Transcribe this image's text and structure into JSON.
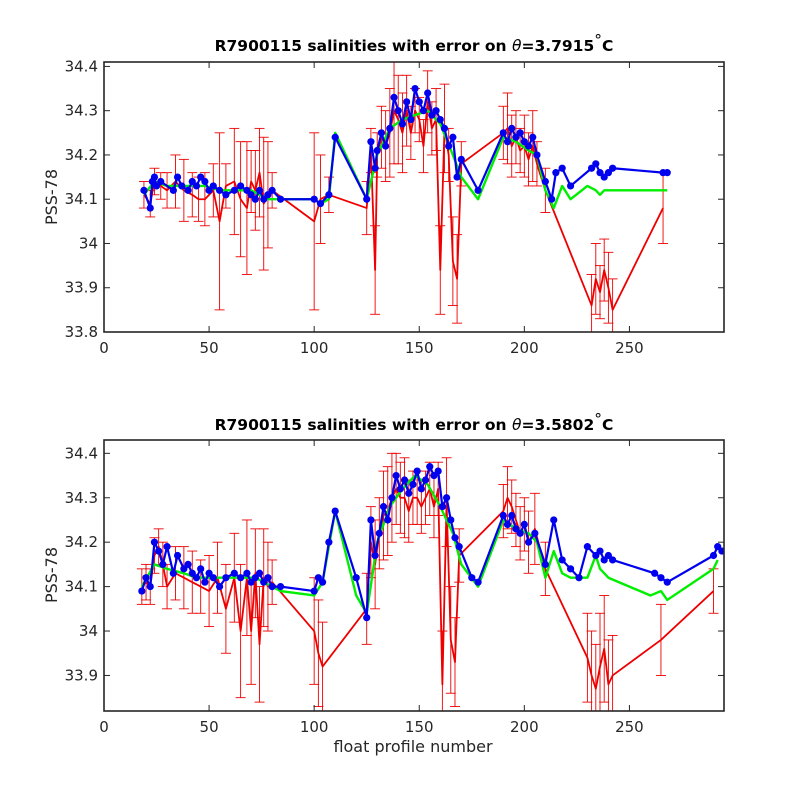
{
  "chart_data": [
    {
      "type": "line",
      "title_prefix": "R7900115 salinities with error on ",
      "title_symbol": "θ",
      "title_value": "=3.7915",
      "title_degree": "°",
      "title_unit": "C",
      "xlabel": "",
      "ylabel": "PSS-78",
      "xlim": [
        0,
        295
      ],
      "ylim": [
        33.8,
        34.41
      ],
      "xticks": [
        0,
        50,
        100,
        150,
        200,
        250
      ],
      "yticks": [
        33.8,
        33.9,
        34,
        34.1,
        34.2,
        34.3,
        34.4
      ],
      "ytick_labels": [
        "33.8",
        "33.9",
        "34",
        "34.1",
        "34.2",
        "34.3",
        "34.4"
      ],
      "colors": {
        "mapped": "#00ee00",
        "errorbar": "#ee0000",
        "float": "#0000ee"
      },
      "series": [
        {
          "role": "float",
          "x": [
            19,
            22,
            23,
            24,
            25,
            27,
            33,
            35,
            37,
            40,
            42,
            44,
            46,
            48,
            50,
            52,
            55,
            58,
            62,
            65,
            68,
            70,
            72,
            74,
            76,
            78,
            80,
            84,
            100,
            103,
            107,
            110,
            125,
            127,
            129,
            130,
            132,
            134,
            136,
            138,
            140,
            142,
            144,
            146,
            148,
            150,
            152,
            154,
            156,
            158,
            160,
            162,
            164,
            166,
            168,
            170,
            178,
            190,
            192,
            194,
            196,
            198,
            200,
            202,
            204,
            206,
            210,
            213,
            215,
            218,
            222,
            232,
            234,
            236,
            238,
            240,
            242,
            266,
            268
          ],
          "y": [
            34.12,
            34.08,
            34.14,
            34.15,
            34.13,
            34.14,
            34.12,
            34.15,
            34.13,
            34.12,
            34.14,
            34.13,
            34.15,
            34.14,
            34.12,
            34.13,
            34.12,
            34.11,
            34.12,
            34.13,
            34.12,
            34.11,
            34.1,
            34.12,
            34.1,
            34.11,
            34.12,
            34.1,
            34.1,
            34.09,
            34.11,
            34.24,
            34.1,
            34.23,
            34.17,
            34.21,
            34.25,
            34.22,
            34.26,
            34.33,
            34.3,
            34.27,
            34.32,
            34.28,
            34.35,
            34.32,
            34.3,
            34.34,
            34.29,
            34.3,
            34.28,
            34.26,
            34.22,
            34.24,
            34.15,
            34.19,
            34.12,
            34.25,
            34.23,
            34.26,
            34.24,
            34.25,
            34.23,
            34.22,
            34.24,
            34.2,
            34.14,
            34.1,
            34.16,
            34.17,
            34.13,
            34.17,
            34.18,
            34.16,
            34.15,
            34.16,
            34.17,
            34.16,
            34.16
          ]
        },
        {
          "role": "mapped",
          "x": [
            19,
            24,
            30,
            36,
            42,
            48,
            55,
            62,
            70,
            78,
            84,
            100,
            103,
            107,
            110,
            125,
            130,
            136,
            142,
            148,
            154,
            160,
            166,
            170,
            178,
            190,
            196,
            202,
            206,
            210,
            214,
            218,
            222,
            230,
            234,
            236,
            238,
            240,
            242,
            266,
            268
          ],
          "y": [
            34.11,
            34.14,
            34.13,
            34.13,
            34.13,
            34.13,
            34.12,
            34.12,
            34.12,
            34.1,
            34.1,
            34.1,
            34.09,
            34.1,
            34.25,
            34.1,
            34.2,
            34.26,
            34.28,
            34.29,
            34.3,
            34.27,
            34.2,
            34.15,
            34.1,
            34.24,
            34.23,
            34.21,
            34.2,
            34.12,
            34.08,
            34.13,
            34.1,
            34.13,
            34.12,
            34.11,
            34.12,
            34.12,
            34.12,
            34.12,
            34.12
          ]
        },
        {
          "role": "errorbar",
          "x": [
            19,
            22,
            24,
            27,
            30,
            34,
            38,
            42,
            45,
            48,
            52,
            55,
            58,
            62,
            65,
            68,
            70,
            72,
            74,
            76,
            78,
            80,
            100,
            103,
            107,
            125,
            127,
            129,
            130,
            132,
            134,
            136,
            138,
            140,
            142,
            144,
            146,
            148,
            150,
            152,
            154,
            156,
            158,
            160,
            162,
            164,
            166,
            168,
            170,
            190,
            192,
            194,
            196,
            198,
            200,
            202,
            204,
            206,
            210,
            232,
            234,
            236,
            238,
            240,
            242,
            266
          ],
          "y": [
            34.11,
            34.09,
            34.14,
            34.13,
            34.12,
            34.14,
            34.12,
            34.11,
            34.1,
            34.1,
            34.12,
            34.05,
            34.13,
            34.14,
            34.1,
            34.08,
            34.14,
            34.12,
            34.16,
            34.09,
            34.11,
            34.12,
            34.05,
            34.1,
            34.11,
            34.08,
            34.21,
            33.94,
            34.2,
            34.24,
            34.22,
            34.25,
            34.3,
            34.28,
            34.25,
            34.3,
            34.25,
            34.3,
            34.28,
            34.22,
            34.32,
            34.26,
            34.28,
            33.94,
            34.26,
            34.2,
            33.96,
            33.92,
            34.18,
            34.25,
            34.26,
            34.22,
            34.24,
            34.21,
            34.22,
            34.19,
            34.22,
            34.18,
            34.12,
            33.86,
            33.92,
            33.89,
            33.94,
            33.9,
            33.85,
            34.08
          ],
          "err": [
            0.03,
            0.03,
            0.03,
            0.03,
            0.04,
            0.06,
            0.07,
            0.05,
            0.05,
            0.06,
            0.06,
            0.2,
            0.05,
            0.12,
            0.13,
            0.15,
            0.07,
            0.09,
            0.1,
            0.15,
            0.12,
            0.04,
            0.2,
            0.1,
            0.04,
            0.06,
            0.05,
            0.1,
            0.05,
            0.07,
            0.08,
            0.1,
            0.12,
            0.1,
            0.09,
            0.08,
            0.06,
            0.05,
            0.05,
            0.06,
            0.07,
            0.06,
            0.07,
            0.1,
            0.1,
            0.06,
            0.1,
            0.1,
            0.05,
            0.06,
            0.08,
            0.07,
            0.06,
            0.05,
            0.07,
            0.06,
            0.08,
            0.05,
            0.05,
            0.07,
            0.08,
            0.06,
            0.07,
            0.08,
            0.07,
            0.08
          ]
        }
      ]
    },
    {
      "type": "line",
      "title_prefix": "R7900115 salinities with error on ",
      "title_symbol": "θ",
      "title_value": "=3.5802",
      "title_degree": "°",
      "title_unit": "C",
      "xlabel": "float profile number",
      "ylabel": "PSS-78",
      "xlim": [
        0,
        295
      ],
      "ylim": [
        33.82,
        34.43
      ],
      "xticks": [
        0,
        50,
        100,
        150,
        200,
        250
      ],
      "yticks": [
        33.9,
        34,
        34.1,
        34.2,
        34.3,
        34.4
      ],
      "ytick_labels": [
        "33.9",
        "34",
        "34.1",
        "34.2",
        "34.3",
        "34.4"
      ],
      "colors": {
        "mapped": "#00ee00",
        "errorbar": "#ee0000",
        "float": "#0000ee"
      },
      "series": [
        {
          "role": "float",
          "x": [
            18,
            20,
            22,
            24,
            26,
            28,
            30,
            33,
            35,
            38,
            40,
            42,
            44,
            46,
            48,
            50,
            52,
            55,
            58,
            62,
            65,
            68,
            70,
            72,
            74,
            76,
            78,
            80,
            84,
            100,
            102,
            104,
            107,
            110,
            120,
            125,
            127,
            129,
            131,
            133,
            135,
            137,
            139,
            141,
            143,
            145,
            147,
            149,
            151,
            153,
            155,
            157,
            159,
            161,
            163,
            165,
            167,
            169,
            175,
            178,
            190,
            192,
            194,
            196,
            198,
            200,
            202,
            205,
            210,
            214,
            218,
            222,
            226,
            230,
            234,
            236,
            238,
            240,
            242,
            262,
            265,
            268,
            290,
            292,
            294
          ],
          "y": [
            34.09,
            34.12,
            34.1,
            34.2,
            34.18,
            34.15,
            34.19,
            34.13,
            34.17,
            34.14,
            34.15,
            34.13,
            34.12,
            34.14,
            34.11,
            34.13,
            34.12,
            34.1,
            34.12,
            34.13,
            34.12,
            34.13,
            34.11,
            34.12,
            34.13,
            34.11,
            34.12,
            34.1,
            34.1,
            34.09,
            34.12,
            34.11,
            34.2,
            34.27,
            34.12,
            34.03,
            34.25,
            34.17,
            34.22,
            34.28,
            34.25,
            34.3,
            34.35,
            34.32,
            34.34,
            34.31,
            34.33,
            34.36,
            34.32,
            34.34,
            34.37,
            34.35,
            34.36,
            34.28,
            34.3,
            34.25,
            34.21,
            34.19,
            34.12,
            34.11,
            34.26,
            34.24,
            34.26,
            34.23,
            34.22,
            34.24,
            34.2,
            34.22,
            34.15,
            34.25,
            34.16,
            34.14,
            34.12,
            34.19,
            34.17,
            34.18,
            34.16,
            34.17,
            34.16,
            34.13,
            34.12,
            34.11,
            34.17,
            34.19,
            34.18
          ]
        },
        {
          "role": "mapped",
          "x": [
            18,
            24,
            30,
            38,
            44,
            50,
            58,
            65,
            72,
            80,
            84,
            100,
            104,
            110,
            120,
            125,
            130,
            136,
            142,
            148,
            154,
            160,
            166,
            170,
            178,
            190,
            196,
            202,
            206,
            210,
            214,
            218,
            222,
            226,
            230,
            234,
            236,
            240,
            260,
            265,
            268,
            290,
            292
          ],
          "y": [
            34.1,
            34.15,
            34.14,
            34.13,
            34.12,
            34.12,
            34.12,
            34.12,
            34.12,
            34.1,
            34.09,
            34.08,
            34.11,
            34.27,
            34.08,
            34.04,
            34.2,
            34.28,
            34.32,
            34.35,
            34.33,
            34.28,
            34.22,
            34.15,
            34.1,
            34.25,
            34.23,
            34.22,
            34.2,
            34.12,
            34.18,
            34.13,
            34.12,
            34.12,
            34.12,
            34.17,
            34.14,
            34.12,
            34.08,
            34.09,
            34.07,
            34.14,
            34.16
          ]
        },
        {
          "role": "errorbar",
          "x": [
            18,
            20,
            22,
            24,
            26,
            28,
            30,
            34,
            38,
            42,
            46,
            50,
            54,
            58,
            62,
            65,
            68,
            70,
            72,
            74,
            76,
            78,
            80,
            100,
            102,
            104,
            125,
            127,
            129,
            131,
            133,
            135,
            137,
            139,
            141,
            143,
            145,
            147,
            149,
            151,
            153,
            155,
            157,
            159,
            161,
            163,
            165,
            167,
            169,
            190,
            192,
            194,
            196,
            198,
            200,
            202,
            205,
            210,
            230,
            232,
            234,
            236,
            238,
            240,
            242,
            265,
            290
          ],
          "y": [
            34.1,
            34.11,
            34.1,
            34.17,
            34.19,
            34.15,
            34.1,
            34.13,
            34.12,
            34.11,
            34.1,
            34.09,
            34.12,
            34.05,
            34.12,
            34.0,
            34.12,
            34.0,
            34.13,
            33.97,
            34.12,
            34.1,
            34.11,
            34.0,
            33.95,
            33.92,
            34.05,
            34.2,
            34.15,
            34.22,
            34.26,
            34.27,
            34.3,
            34.32,
            34.3,
            34.3,
            34.27,
            34.3,
            34.3,
            34.28,
            34.3,
            34.32,
            34.28,
            34.32,
            33.88,
            34.29,
            33.98,
            33.93,
            34.17,
            34.27,
            34.3,
            34.28,
            34.25,
            34.22,
            34.24,
            34.2,
            34.23,
            34.14,
            33.94,
            33.9,
            33.87,
            33.92,
            33.96,
            33.88,
            33.9,
            33.98,
            34.09
          ],
          "err": [
            0.04,
            0.04,
            0.04,
            0.04,
            0.04,
            0.05,
            0.05,
            0.06,
            0.07,
            0.07,
            0.06,
            0.08,
            0.08,
            0.1,
            0.1,
            0.15,
            0.13,
            0.12,
            0.1,
            0.13,
            0.11,
            0.1,
            0.05,
            0.12,
            0.12,
            0.1,
            0.08,
            0.08,
            0.1,
            0.08,
            0.1,
            0.1,
            0.1,
            0.08,
            0.08,
            0.09,
            0.07,
            0.06,
            0.06,
            0.06,
            0.06,
            0.06,
            0.07,
            0.06,
            0.12,
            0.1,
            0.12,
            0.1,
            0.06,
            0.06,
            0.07,
            0.06,
            0.06,
            0.06,
            0.06,
            0.07,
            0.08,
            0.06,
            0.1,
            0.1,
            0.1,
            0.12,
            0.12,
            0.1,
            0.09,
            0.08,
            0.05
          ]
        }
      ]
    }
  ]
}
